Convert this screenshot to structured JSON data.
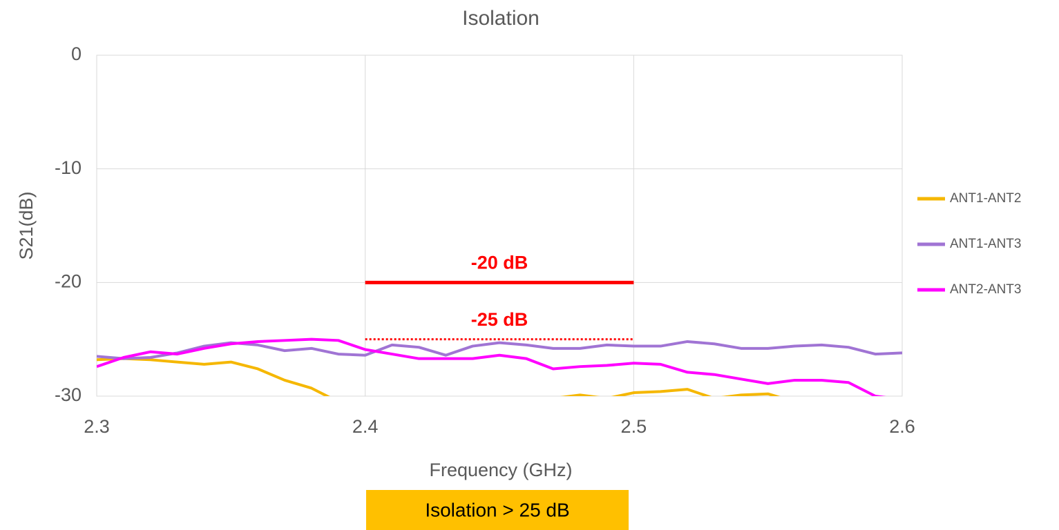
{
  "chart_data": {
    "type": "line",
    "title": "Isolation",
    "xlabel": "Frequency (GHz)",
    "ylabel": "S21(dB)",
    "x": [
      2.3,
      2.31,
      2.32,
      2.33,
      2.34,
      2.35,
      2.36,
      2.37,
      2.38,
      2.39,
      2.4,
      2.41,
      2.42,
      2.43,
      2.44,
      2.45,
      2.46,
      2.47,
      2.48,
      2.49,
      2.5,
      2.51,
      2.52,
      2.53,
      2.54,
      2.55,
      2.56,
      2.57,
      2.58,
      2.59,
      2.6
    ],
    "series": [
      {
        "name": "ANT1-ANT2",
        "color": "#f5b700",
        "values": [
          -26.8,
          -26.7,
          -26.8,
          -27.0,
          -27.2,
          -27.0,
          -27.6,
          -28.6,
          -29.3,
          -30.5,
          -31,
          -31.5,
          -31.5,
          -31.2,
          -31,
          -30.8,
          -30.5,
          -30.2,
          -29.9,
          -30.2,
          -29.7,
          -29.6,
          -29.4,
          -30.2,
          -29.9,
          -29.8,
          -30.5,
          -31,
          -31.5,
          -32,
          -32
        ]
      },
      {
        "name": "ANT1-ANT3",
        "color": "#a074d4",
        "values": [
          -26.5,
          -26.7,
          -26.6,
          -26.2,
          -25.6,
          -25.3,
          -25.5,
          -26.0,
          -25.8,
          -26.3,
          -26.4,
          -25.5,
          -25.7,
          -26.4,
          -25.6,
          -25.3,
          -25.5,
          -25.8,
          -25.8,
          -25.5,
          -25.6,
          -25.6,
          -25.2,
          -25.4,
          -25.8,
          -25.8,
          -25.6,
          -25.5,
          -25.7,
          -26.3,
          -26.2
        ]
      },
      {
        "name": "ANT2-ANT3",
        "color": "#ff00ff",
        "values": [
          -27.4,
          -26.6,
          -26.1,
          -26.3,
          -25.8,
          -25.4,
          -25.2,
          -25.1,
          -25.0,
          -25.1,
          -25.9,
          -26.3,
          -26.7,
          -26.7,
          -26.7,
          -26.4,
          -26.7,
          -27.6,
          -27.4,
          -27.3,
          -27.1,
          -27.2,
          -27.9,
          -28.1,
          -28.5,
          -28.9,
          -28.6,
          -28.6,
          -28.8,
          -30.0,
          -30.3
        ]
      }
    ],
    "xlim": [
      2.3,
      2.6
    ],
    "xticks": [
      2.3,
      2.4,
      2.5,
      2.6
    ],
    "ylim": [
      -30,
      0
    ],
    "yticks": [
      0,
      -10,
      -20,
      -30
    ],
    "grid": true,
    "legend": "right",
    "annotations": [
      {
        "text": "-20 dB",
        "y": -20,
        "x": [
          2.4,
          2.5
        ],
        "style": "solid",
        "color": "#ff0000"
      },
      {
        "text": "-25 dB",
        "y": -25,
        "x": [
          2.4,
          2.5
        ],
        "style": "dotted",
        "color": "#ff0000"
      }
    ],
    "note": "Isolation > 25 dB",
    "note_color": "#ffc000"
  }
}
